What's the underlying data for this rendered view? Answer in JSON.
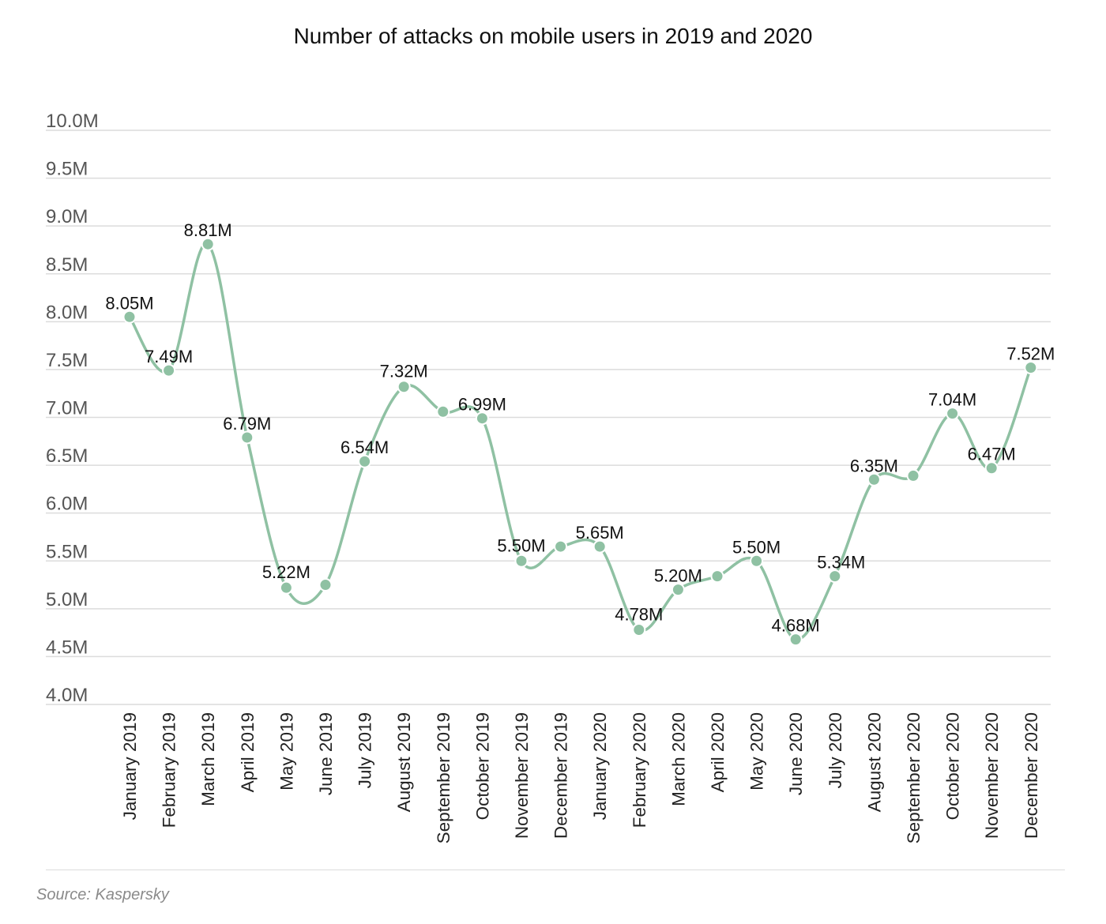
{
  "chart_data": {
    "type": "line",
    "title": "Number of attacks on mobile users in 2019 and 2020",
    "xlabel": "",
    "ylabel": "",
    "ylim": [
      4.0,
      10.0
    ],
    "y_ticks": [
      4.0,
      4.5,
      5.0,
      5.5,
      6.0,
      6.5,
      7.0,
      7.5,
      8.0,
      8.5,
      9.0,
      9.5,
      10.0
    ],
    "y_tick_labels": [
      "4.0M",
      "4.5M",
      "5.0M",
      "5.5M",
      "6.0M",
      "6.5M",
      "7.0M",
      "7.5M",
      "8.0M",
      "8.5M",
      "9.0M",
      "9.5M",
      "10.0M"
    ],
    "categories": [
      "January 2019",
      "February 2019",
      "March 2019",
      "April 2019",
      "May 2019",
      "June 2019",
      "July 2019",
      "August 2019",
      "September 2019",
      "October 2019",
      "November 2019",
      "December 2019",
      "January 2020",
      "February 2020",
      "March 2020",
      "April 2020",
      "May 2020",
      "June 2020",
      "July 2020",
      "August 2020",
      "September 2020",
      "October 2020",
      "November 2020",
      "December 2020"
    ],
    "series": [
      {
        "values": [
          8.05,
          7.49,
          8.81,
          6.79,
          5.22,
          5.25,
          6.54,
          7.32,
          7.06,
          6.99,
          5.5,
          5.65,
          5.65,
          4.78,
          5.2,
          5.34,
          5.5,
          4.68,
          5.34,
          6.35,
          6.39,
          7.04,
          6.47,
          7.52
        ],
        "labels": [
          "8.05M",
          "7.49M",
          "8.81M",
          "6.79M",
          "5.22M",
          "",
          "6.54M",
          "7.32M",
          "",
          "6.99M",
          "5.50M",
          "",
          "5.65M",
          "4.78M",
          "5.20M",
          "",
          "5.50M",
          "4.68M",
          "5.34M",
          "6.35M",
          "",
          "7.04M",
          "6.47M",
          "7.52M"
        ],
        "color": "#8fc1a3"
      }
    ],
    "grid": true,
    "legend": "none"
  },
  "source_note": "Source: Kaspersky",
  "colors": {
    "line": "#8fc1a3",
    "grid": "#dcdcdc",
    "axis_text": "#555555"
  }
}
